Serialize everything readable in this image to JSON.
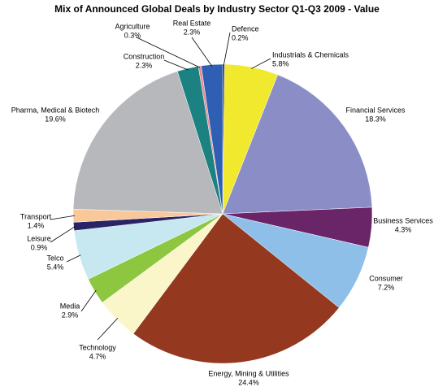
{
  "chart_data": {
    "type": "pie",
    "title": "Mix of Announced Global Deals by Industry Sector Q1-Q3 2009 - Value",
    "categories": [
      "Defence",
      "Industrials & Chemicals",
      "Financial Services",
      "Business Services",
      "Consumer",
      "Energy, Mining & Utilities",
      "Technology",
      "Media",
      "Telco",
      "Leisure",
      "Transport",
      "Pharma, Medical & Biotech",
      "Construction",
      "Agriculture",
      "Real Estate"
    ],
    "values": [
      0.2,
      5.8,
      18.3,
      4.3,
      7.2,
      24.4,
      4.7,
      2.9,
      5.4,
      0.9,
      1.4,
      19.6,
      2.3,
      0.3,
      2.3
    ],
    "value_labels": [
      "0.2%",
      "5.8%",
      "18.3%",
      "4.3%",
      "7.2%",
      "24.4%",
      "4.7%",
      "2.9%",
      "5.4%",
      "0.9%",
      "1.4%",
      "19.6%",
      "2.3%",
      "0.3%",
      "2.3%"
    ],
    "colors": [
      "#1c1c40",
      "#f0e92e",
      "#8b8ec6",
      "#6a2468",
      "#8ebfe8",
      "#943920",
      "#fbf6c9",
      "#8dc63f",
      "#c7e8f1",
      "#2a2466",
      "#f8c89b",
      "#b7b8bb",
      "#1b8181",
      "#e98a92",
      "#2f5fb2"
    ]
  }
}
